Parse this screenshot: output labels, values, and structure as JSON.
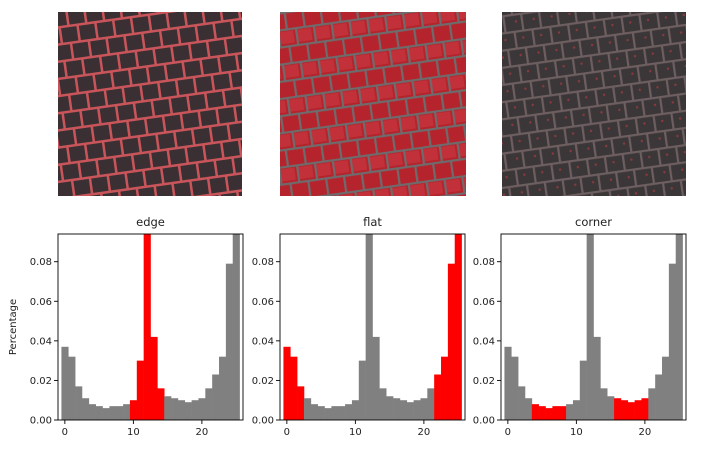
{
  "chart_data": {
    "type": "bar",
    "ylabel": "Percentage",
    "bins": [
      0,
      1,
      2,
      3,
      4,
      5,
      6,
      7,
      8,
      9,
      10,
      11,
      12,
      13,
      14,
      15,
      16,
      17,
      18,
      19,
      20,
      21,
      22,
      23,
      24,
      25
    ],
    "values": [
      0.037,
      0.032,
      0.017,
      0.011,
      0.008,
      0.007,
      0.006,
      0.007,
      0.007,
      0.008,
      0.01,
      0.03,
      0.105,
      0.042,
      0.016,
      0.012,
      0.011,
      0.01,
      0.009,
      0.01,
      0.011,
      0.016,
      0.023,
      0.032,
      0.079,
      0.105
    ],
    "xlim": [
      -1,
      26
    ],
    "ylim": [
      0,
      0.094
    ],
    "xticks": [
      0,
      10,
      20
    ],
    "yticks": [
      0.0,
      0.02,
      0.04,
      0.06,
      0.08
    ],
    "default_color": "#808080",
    "highlight_color": "#ff0000",
    "panels": [
      {
        "title": "edge",
        "highlight_bins": [
          10,
          11,
          12,
          13,
          14
        ],
        "texture_tint": "dark-red-edges"
      },
      {
        "title": "flat",
        "highlight_bins": [
          0,
          1,
          2,
          22,
          23,
          24,
          25
        ],
        "texture_tint": "red-flat"
      },
      {
        "title": "corner",
        "highlight_bins": [
          4,
          5,
          6,
          7,
          8,
          16,
          17,
          18,
          19,
          20
        ],
        "texture_tint": "dark-gray-corners"
      }
    ]
  }
}
